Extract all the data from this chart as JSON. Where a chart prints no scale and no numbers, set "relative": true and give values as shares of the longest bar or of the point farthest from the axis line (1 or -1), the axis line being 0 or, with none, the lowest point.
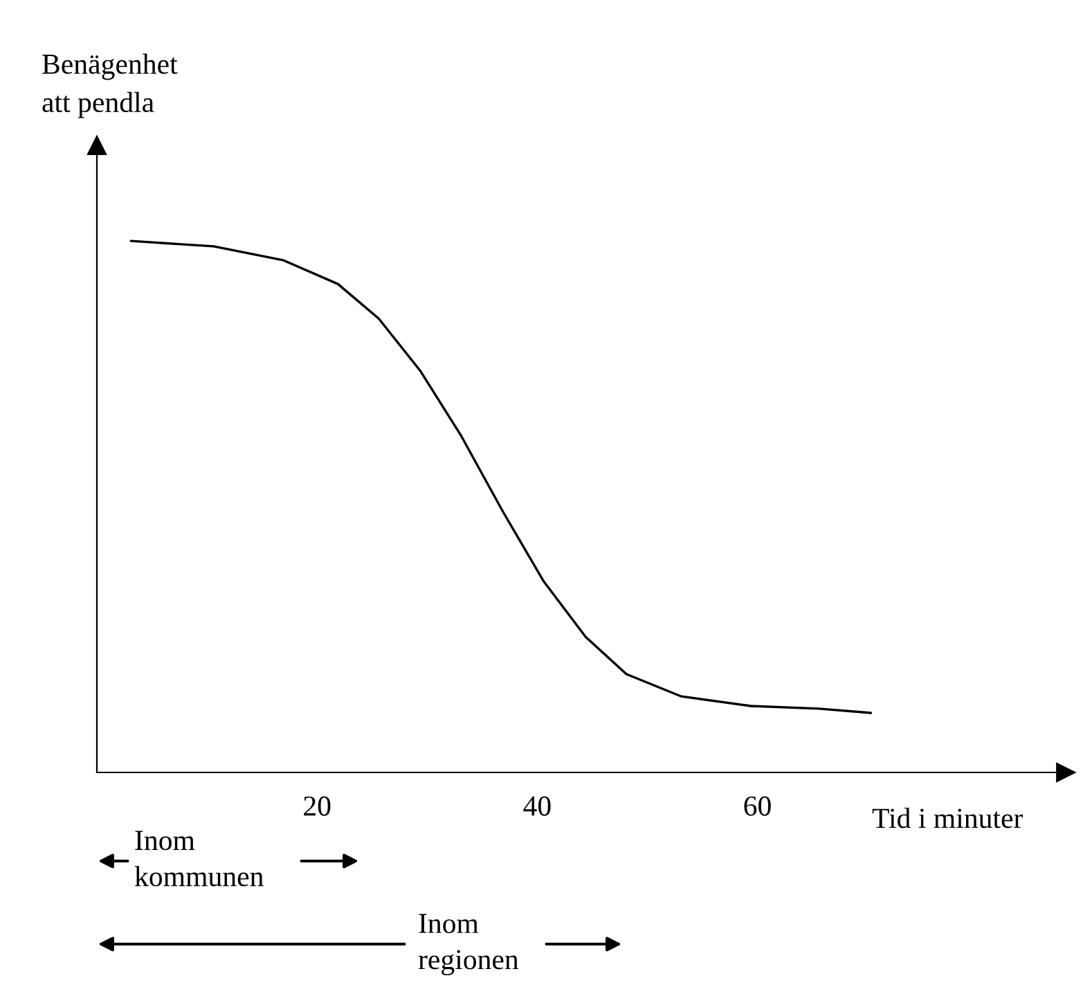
{
  "chart_data": {
    "type": "line",
    "relative": true,
    "ylabel": "Benägenhet\natt pendla",
    "xlabel": "Tid i minuter",
    "x": [
      3.1,
      10.6,
      16.9,
      21.9,
      25.6,
      29.4,
      33.1,
      36.9,
      40.6,
      44.4,
      48.1,
      53.1,
      59.4,
      65.6,
      70.3
    ],
    "series": [
      {
        "color": "#000000",
        "values": [
          1,
          0.99,
          0.964,
          0.919,
          0.854,
          0.755,
          0.633,
          0.49,
          0.359,
          0.255,
          0.185,
          0.143,
          0.125,
          0.12,
          0.112
        ]
      }
    ],
    "xlim": [
      0,
      88
    ],
    "xticks": [
      20,
      40,
      60
    ],
    "annotations": [
      "Inom\nkommunen",
      "Inom\nregionen"
    ],
    "grid": false,
    "legend": false,
    "marker": "none",
    "line_style": "solid"
  }
}
